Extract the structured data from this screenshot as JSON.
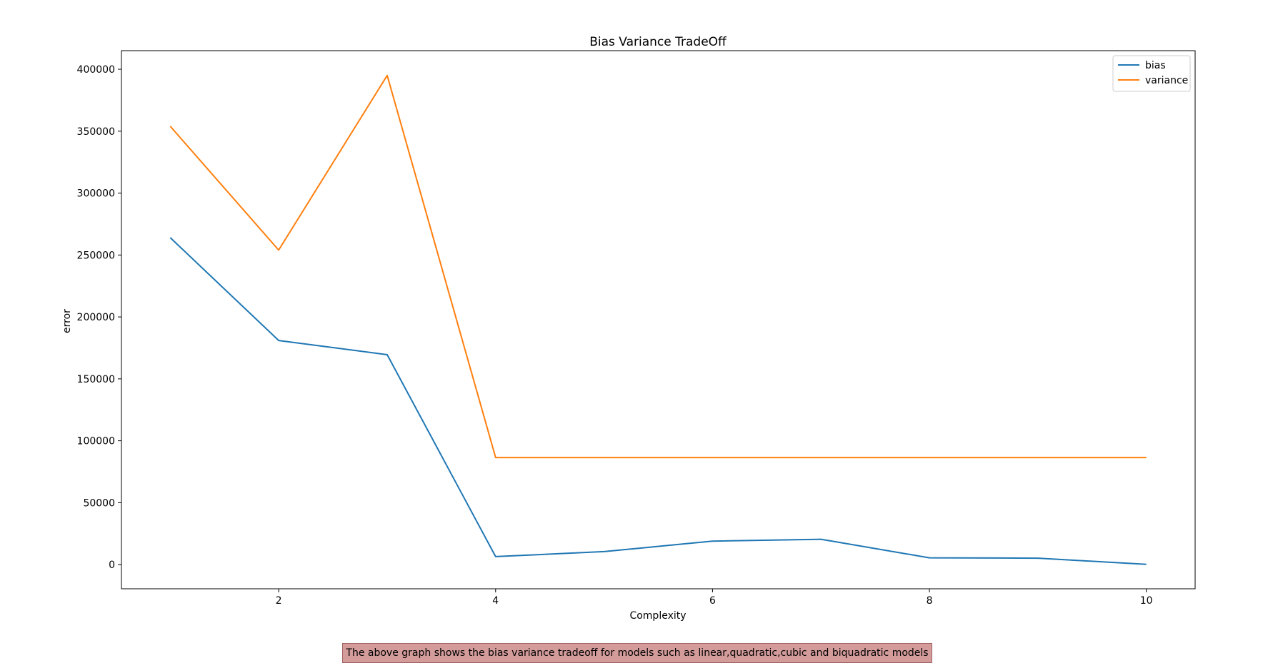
{
  "chart_data": {
    "type": "line",
    "title": "Bias Variance TradeOff",
    "xlabel": "Complexity",
    "ylabel": "error",
    "x": [
      1,
      2,
      3,
      4,
      5,
      6,
      7,
      8,
      9,
      10
    ],
    "xlim": [
      0.55,
      10.45
    ],
    "ylim": [
      -19500,
      415000
    ],
    "xticks": [
      2,
      4,
      6,
      8,
      10
    ],
    "yticks": [
      0,
      50000,
      100000,
      150000,
      200000,
      250000,
      300000,
      350000,
      400000
    ],
    "grid": false,
    "legend_position": "top-right",
    "series": [
      {
        "name": "bias",
        "color": "#1f77b4",
        "values": [
          264000,
          181000,
          169500,
          6500,
          10500,
          19000,
          20500,
          5500,
          5200,
          200
        ]
      },
      {
        "name": "variance",
        "color": "#ff7f0e",
        "values": [
          354000,
          254000,
          395000,
          86500,
          86500,
          86500,
          86500,
          86500,
          86500,
          86500
        ]
      }
    ]
  },
  "caption": "The above graph shows the bias variance tradeoff for models such as linear,quadratic,cubic and biquadratic models"
}
